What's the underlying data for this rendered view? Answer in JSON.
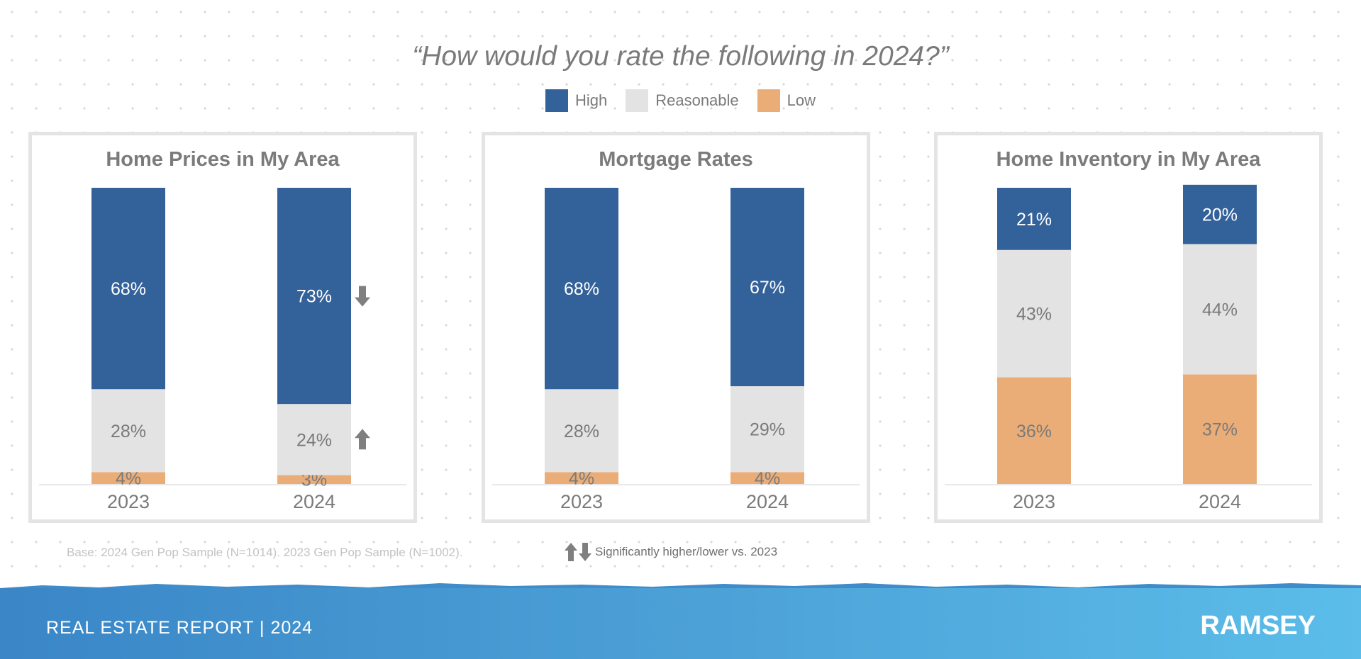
{
  "title": "“How would you rate the following in 2024?”",
  "legend": [
    {
      "label": "High",
      "color": "#336199"
    },
    {
      "label": "Reasonable",
      "color": "#e3e3e3"
    },
    {
      "label": "Low",
      "color": "#ebad77"
    }
  ],
  "chart_data": [
    {
      "type": "bar",
      "stacked": true,
      "title": "Home Prices in My Area",
      "categories": [
        "2023",
        "2024"
      ],
      "series": [
        {
          "name": "Low",
          "values": [
            4,
            3
          ]
        },
        {
          "name": "Reasonable",
          "values": [
            28,
            24
          ]
        },
        {
          "name": "High",
          "values": [
            68,
            73
          ]
        }
      ],
      "value_labels": [
        [
          "4%",
          "28%",
          "68%"
        ],
        [
          "3%",
          "24%",
          "73%"
        ]
      ],
      "significance": [
        "",
        "up",
        "down"
      ],
      "ylim": [
        0,
        100
      ]
    },
    {
      "type": "bar",
      "stacked": true,
      "title": "Mortgage Rates",
      "categories": [
        "2023",
        "2024"
      ],
      "series": [
        {
          "name": "Low",
          "values": [
            4,
            4
          ]
        },
        {
          "name": "Reasonable",
          "values": [
            28,
            29
          ]
        },
        {
          "name": "High",
          "values": [
            68,
            67
          ]
        }
      ],
      "value_labels": [
        [
          "4%",
          "28%",
          "68%"
        ],
        [
          "4%",
          "29%",
          "67%"
        ]
      ],
      "significance": [
        "",
        "",
        ""
      ],
      "ylim": [
        0,
        100
      ]
    },
    {
      "type": "bar",
      "stacked": true,
      "title": "Home Inventory in My Area",
      "categories": [
        "2023",
        "2024"
      ],
      "series": [
        {
          "name": "Low",
          "values": [
            36,
            37
          ]
        },
        {
          "name": "Reasonable",
          "values": [
            43,
            44
          ]
        },
        {
          "name": "High",
          "values": [
            21,
            20
          ]
        }
      ],
      "value_labels": [
        [
          "36%",
          "43%",
          "21%"
        ],
        [
          "37%",
          "44%",
          "20%"
        ]
      ],
      "significance": [
        "",
        "",
        ""
      ],
      "ylim": [
        0,
        100
      ]
    }
  ],
  "footnotes": {
    "base": "Base: 2024 Gen Pop Sample (N=1014). 2023 Gen Pop Sample (N=1002).",
    "significance": "Significantly higher/lower vs. 2023"
  },
  "footer": {
    "report": "REAL ESTATE REPORT | 2024",
    "logo": "RAMSEY"
  },
  "icons": {
    "up": "arrow-up-icon",
    "down": "arrow-down-icon"
  },
  "colors": {
    "arrow": "#7f7f7f",
    "label_light": "#ffffff",
    "label_dark": "#7a7a7a",
    "axis": "#e2e2e2"
  }
}
